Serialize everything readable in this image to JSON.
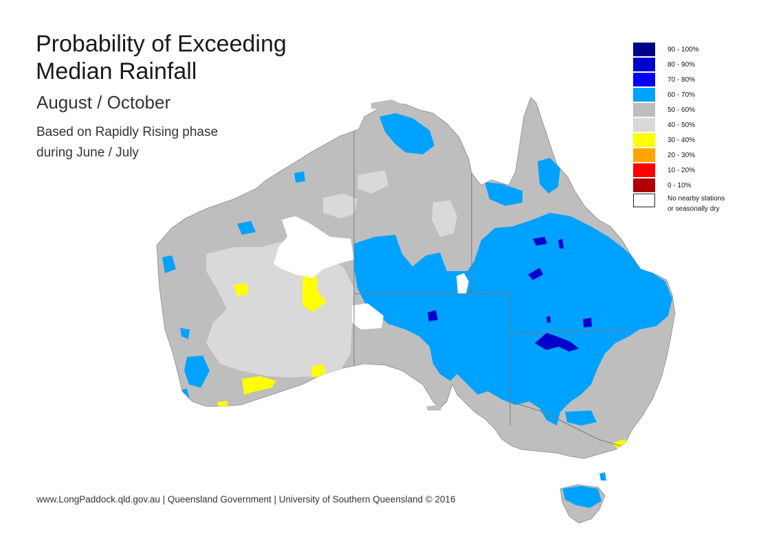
{
  "title_line1": "Probability of Exceeding",
  "title_line2": "Median Rainfall",
  "period": "August / October",
  "basis_line1": "Based on Rapidly Rising phase",
  "basis_line2": "during June / July",
  "footer": "www.LongPaddock.qld.gov.au | Queensland Government | University of Southern Queensland © 2016",
  "legend": [
    {
      "label": "90 - 100%",
      "color": "#00008B"
    },
    {
      "label": "80 - 90%",
      "color": "#0000CD"
    },
    {
      "label": "70 - 80%",
      "color": "#0000FF"
    },
    {
      "label": "60 - 70%",
      "color": "#00A2FF"
    },
    {
      "label": "50 - 60%",
      "color": "#BEBEBE"
    },
    {
      "label": "40 - 50%",
      "color": "#D9D9D9"
    },
    {
      "label": "30 - 40%",
      "color": "#FFFF00"
    },
    {
      "label": "20 - 30%",
      "color": "#FFA500"
    },
    {
      "label": "10 - 20%",
      "color": "#FF0000"
    },
    {
      "label": "0 - 10%",
      "color": "#B00000"
    },
    {
      "label": "No nearby stations\nor seasonally dry",
      "color": "#FFFFFF"
    }
  ],
  "colors": {
    "land_base": "#BEBEBE",
    "light_grey": "#D9D9D9",
    "light_blue": "#00A2FF",
    "dark_blue": "#0000CD",
    "yellow": "#FFFF00",
    "no_data": "#FFFFFF",
    "border": "#7A7A7A"
  }
}
